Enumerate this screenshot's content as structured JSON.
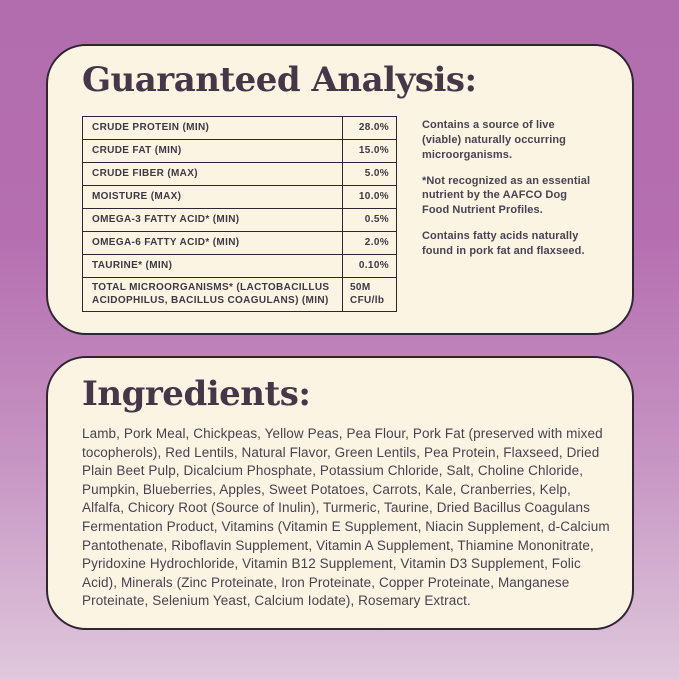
{
  "palette": {
    "background_gradient_top": "#b26dae",
    "background_gradient_bottom": "#dfc8dc",
    "card_background": "#fbf4e3",
    "border_dark": "#2f2533",
    "title_color": "#453648",
    "body_text_color": "#494150"
  },
  "guaranteed_analysis": {
    "title": "Guaranteed Analysis:",
    "rows": [
      {
        "label": "CRUDE PROTEIN (MIN)",
        "value": "28.0%"
      },
      {
        "label": "CRUDE FAT (MIN)",
        "value": "15.0%"
      },
      {
        "label": "CRUDE FIBER (MAX)",
        "value": "5.0%"
      },
      {
        "label": "MOISTURE (MAX)",
        "value": "10.0%"
      },
      {
        "label": "OMEGA-3 FATTY ACID* (MIN)",
        "value": "0.5%"
      },
      {
        "label": "OMEGA-6 FATTY ACID* (MIN)",
        "value": "2.0%"
      },
      {
        "label": "TAURINE* (MIN)",
        "value": "0.10%"
      },
      {
        "label": "TOTAL MICROORGANISMS* (LACTOBACILLUS ACIDOPHILUS, BACILLUS COAGULANS) (MIN)",
        "value": "50M CFU/lb"
      }
    ],
    "notes": [
      "Contains a source of live (viable) naturally occurring microorganisms.",
      "*Not recognized as an essential nutrient by the AAFCO Dog Food Nutrient Profiles.",
      "Contains fatty acids naturally found in pork fat and flaxseed."
    ]
  },
  "ingredients": {
    "title": "Ingredients:",
    "text": "Lamb, Pork Meal, Chickpeas, Yellow Peas, Pea Flour, Pork Fat (preserved with mixed tocopherols), Red Lentils, Natural Flavor, Green Lentils, Pea Protein, Flaxseed, Dried Plain Beet Pulp, Dicalcium Phosphate, Potassium Chloride, Salt, Choline Chloride, Pumpkin, Blueberries, Apples, Sweet Potatoes, Carrots, Kale, Cranberries, Kelp, Alfalfa, Chicory Root (Source of Inulin), Turmeric, Taurine, Dried Bacillus Coagulans Fermentation Product, Vitamins (Vitamin E Supplement, Niacin Supplement, d-Calcium Pantothenate, Riboflavin Supplement, Vitamin A Supplement, Thiamine Mononitrate, Pyridoxine Hydrochloride, Vitamin B12 Supplement, Vitamin D3 Supplement, Folic Acid), Minerals (Zinc Proteinate, Iron Proteinate, Copper Proteinate, Manganese Proteinate, Selenium Yeast, Calcium Iodate), Rosemary Extract."
  }
}
